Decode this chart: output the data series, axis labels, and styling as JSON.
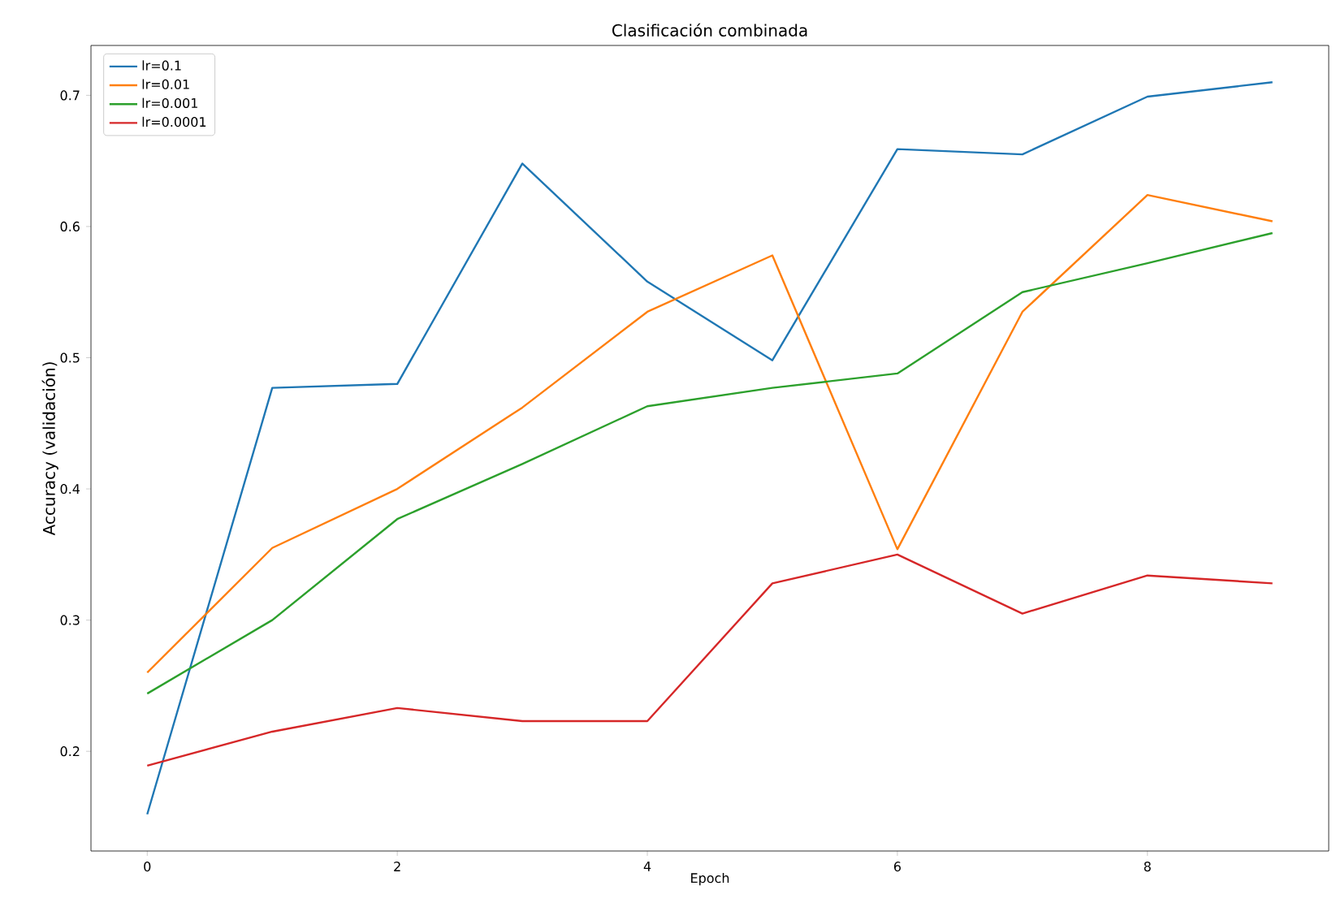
{
  "chart_data": {
    "type": "line",
    "title": "Clasificación combinada",
    "xlabel": "Epoch",
    "ylabel": "Accuracy (validación)",
    "x": [
      0,
      1,
      2,
      3,
      4,
      5,
      6,
      7,
      8,
      9
    ],
    "series": [
      {
        "name": "lr=0.1",
        "color": "#1f77b4",
        "values": [
          0.152,
          0.477,
          0.48,
          0.648,
          0.558,
          0.498,
          0.659,
          0.655,
          0.699,
          0.71
        ]
      },
      {
        "name": "lr=0.01",
        "color": "#ff7f0e",
        "values": [
          0.26,
          0.355,
          0.4,
          0.462,
          0.535,
          0.578,
          0.354,
          0.535,
          0.624,
          0.604
        ]
      },
      {
        "name": "lr=0.001",
        "color": "#2ca02c",
        "values": [
          0.244,
          0.3,
          0.377,
          0.419,
          0.463,
          0.477,
          0.488,
          0.55,
          0.572,
          0.595
        ]
      },
      {
        "name": "lr=0.0001",
        "color": "#d62728",
        "values": [
          0.189,
          0.215,
          0.233,
          0.223,
          0.223,
          0.328,
          0.35,
          0.305,
          0.334,
          0.328
        ]
      }
    ],
    "xlim": [
      -0.45,
      9.45
    ],
    "ylim": [
      0.124,
      0.738
    ],
    "xticks": [
      0,
      2,
      4,
      6,
      8
    ],
    "yticks": [
      0.2,
      0.3,
      0.4,
      0.5,
      0.6,
      0.7
    ],
    "legend": "top left",
    "grid": false,
    "marker": "none",
    "line_style": "solid"
  }
}
